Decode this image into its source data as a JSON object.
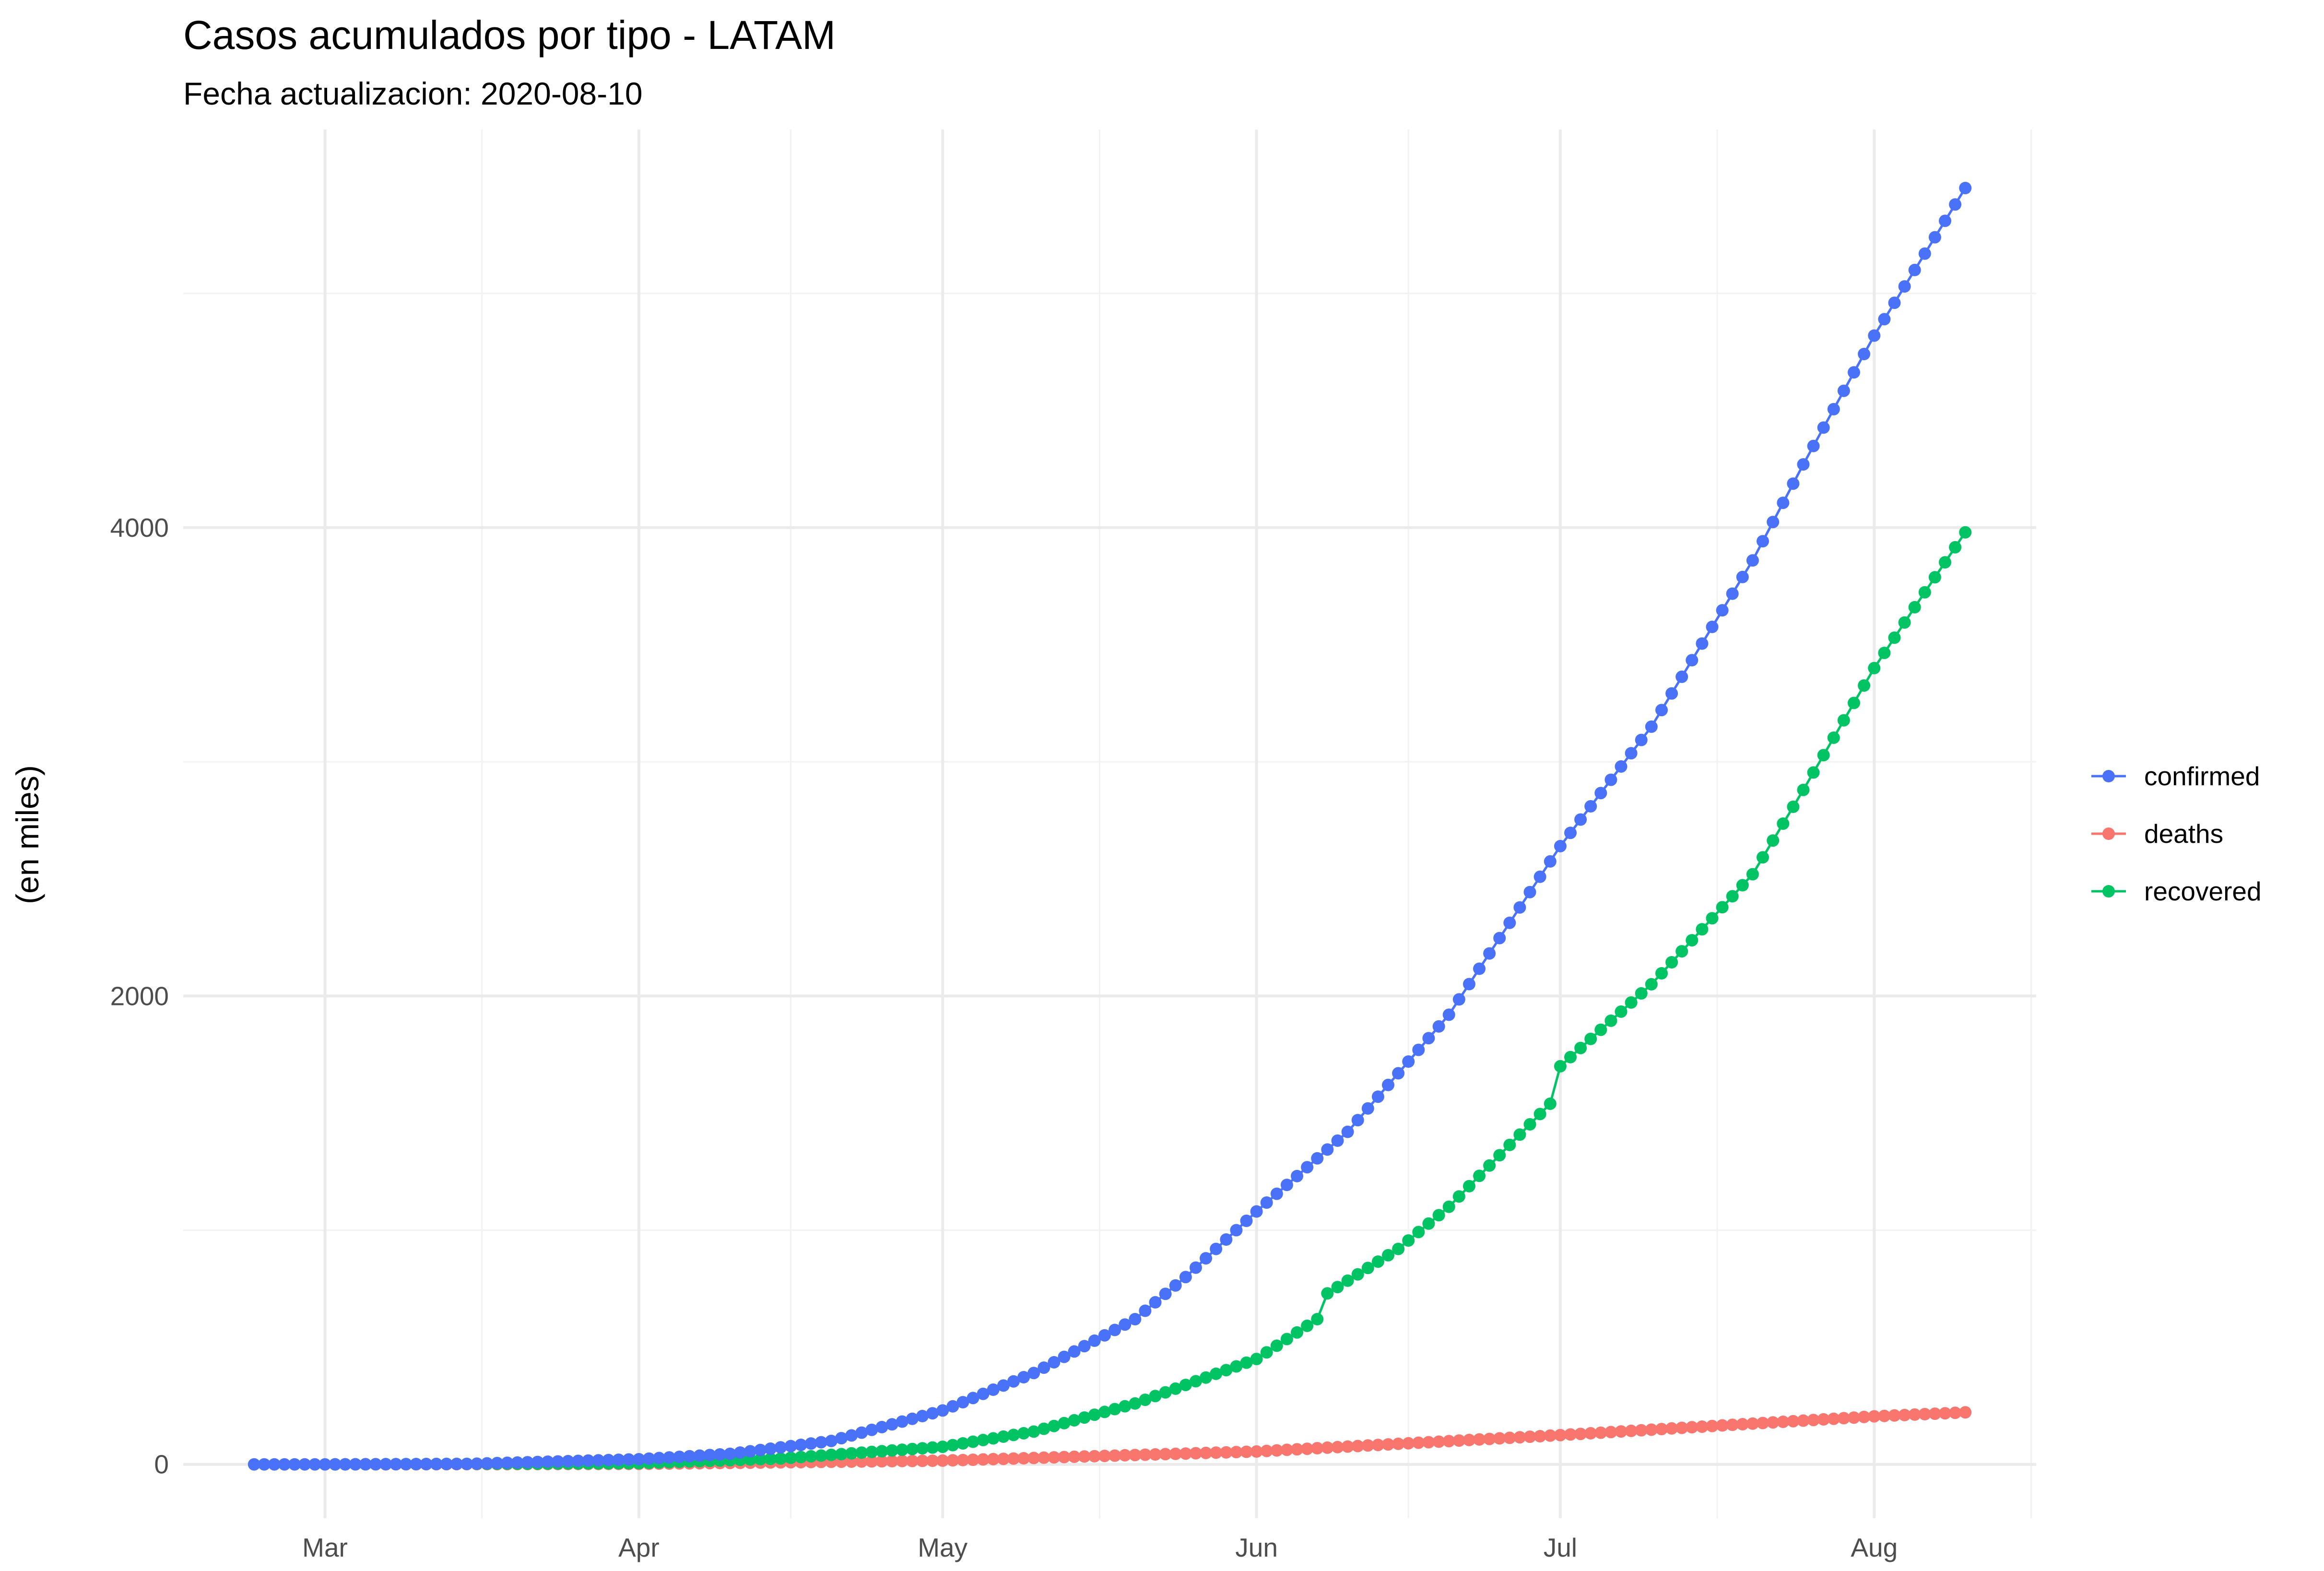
{
  "chart_data": {
    "type": "line",
    "title": "Casos acumulados por tipo - LATAM",
    "subtitle": "Fecha actualizacion: 2020-08-10",
    "xlabel": "",
    "ylabel": "(en miles)",
    "x_ticks": [
      {
        "date": "2020-03-01",
        "label": "Mar"
      },
      {
        "date": "2020-04-01",
        "label": "Apr"
      },
      {
        "date": "2020-05-01",
        "label": "May"
      },
      {
        "date": "2020-06-01",
        "label": "Jun"
      },
      {
        "date": "2020-07-01",
        "label": "Jul"
      },
      {
        "date": "2020-08-01",
        "label": "Aug"
      }
    ],
    "y_ticks": [
      0,
      2000,
      4000
    ],
    "xlim": [
      "2020-02-16",
      "2020-08-17"
    ],
    "ylim": [
      -230,
      5700
    ],
    "grid": true,
    "legend_position": "right",
    "series": [
      {
        "name": "confirmed",
        "color": "#4A72F8",
        "start_date": "2020-02-23",
        "points": [
          [
            "2020-02-23",
            0
          ],
          [
            "2020-03-01",
            0
          ],
          [
            "2020-03-15",
            2
          ],
          [
            "2020-04-01",
            22
          ],
          [
            "2020-04-10",
            45
          ],
          [
            "2020-04-20",
            100
          ],
          [
            "2020-05-01",
            230
          ],
          [
            "2020-05-10",
            390
          ],
          [
            "2020-05-20",
            620
          ],
          [
            "2020-05-25",
            800
          ],
          [
            "2020-06-01",
            1080
          ],
          [
            "2020-06-10",
            1420
          ],
          [
            "2020-06-20",
            1920
          ],
          [
            "2020-07-01",
            2640
          ],
          [
            "2020-07-10",
            3150
          ],
          [
            "2020-07-20",
            3860
          ],
          [
            "2020-07-25",
            4270
          ],
          [
            "2020-08-01",
            4820
          ],
          [
            "2020-08-05",
            5100
          ],
          [
            "2020-08-10",
            5450
          ]
        ]
      },
      {
        "name": "deaths",
        "color": "#F8766D",
        "start_date": "2020-03-02",
        "points": [
          [
            "2020-03-02",
            0
          ],
          [
            "2020-04-01",
            2
          ],
          [
            "2020-05-01",
            16
          ],
          [
            "2020-06-01",
            55
          ],
          [
            "2020-07-01",
            125
          ],
          [
            "2020-08-01",
            205
          ],
          [
            "2020-08-10",
            222
          ]
        ]
      },
      {
        "name": "recovered",
        "color": "#00C464",
        "start_date": "2020-03-02",
        "points": [
          [
            "2020-03-02",
            0
          ],
          [
            "2020-04-01",
            5
          ],
          [
            "2020-04-15",
            25
          ],
          [
            "2020-05-01",
            75
          ],
          [
            "2020-05-10",
            140
          ],
          [
            "2020-05-20",
            260
          ],
          [
            "2020-06-01",
            450
          ],
          [
            "2020-06-07",
            620
          ],
          [
            "2020-06-08",
            730
          ],
          [
            "2020-06-15",
            920
          ],
          [
            "2020-06-20",
            1100
          ],
          [
            "2020-06-30",
            1540
          ],
          [
            "2020-07-01",
            1700
          ],
          [
            "2020-07-10",
            2050
          ],
          [
            "2020-07-20",
            2520
          ],
          [
            "2020-07-25",
            2880
          ],
          [
            "2020-08-01",
            3400
          ],
          [
            "2020-08-05",
            3660
          ],
          [
            "2020-08-10",
            3980
          ]
        ]
      }
    ]
  }
}
